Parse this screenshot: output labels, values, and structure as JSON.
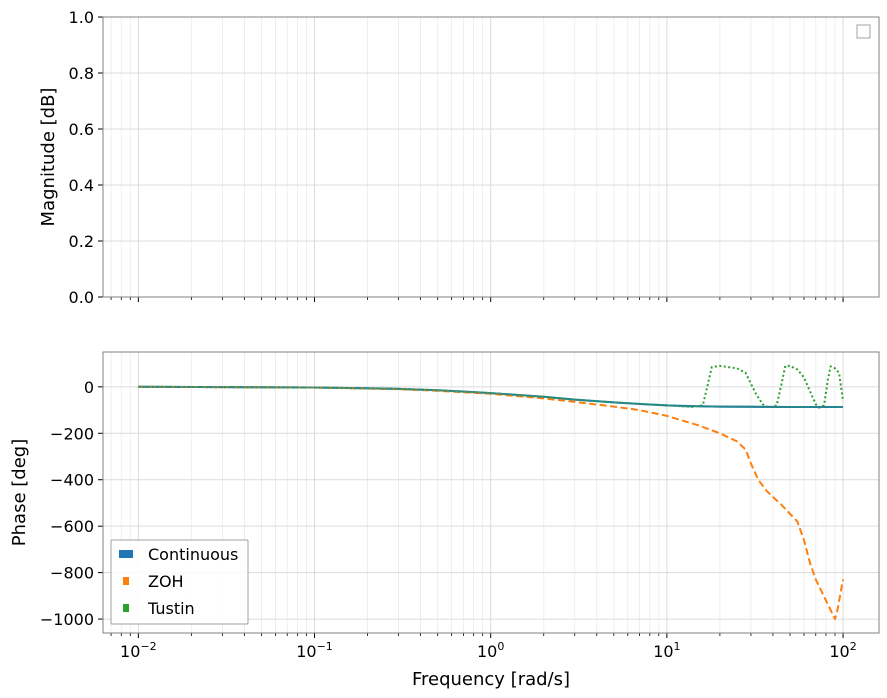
{
  "chart_data": [
    {
      "type": "line",
      "panel": "magnitude",
      "xscale": "log",
      "xlim": [
        0.0063,
        160
      ],
      "ylim": [
        0,
        1.0
      ],
      "ylabel": "Magnitude [dB]",
      "xlabel": "",
      "grid": true,
      "yticks": [
        0.0,
        0.2,
        0.4,
        0.6,
        0.8,
        1.0
      ],
      "ytick_labels": [
        "0.0",
        "0.2",
        "0.4",
        "0.6",
        "0.8",
        "1.0"
      ],
      "legend": {
        "placement": "top-right",
        "entries": []
      },
      "series": []
    },
    {
      "type": "line",
      "panel": "phase",
      "xscale": "log",
      "xlim": [
        0.0063,
        160
      ],
      "ylim": [
        -1060,
        150
      ],
      "xlabel": "Frequency [rad/s]",
      "ylabel": "Phase [deg]",
      "grid": true,
      "xticks": [
        0.01,
        0.1,
        1,
        10,
        100
      ],
      "xtick_labels": [
        {
          "base": "10",
          "exp": "−2"
        },
        {
          "base": "10",
          "exp": "−1"
        },
        {
          "base": "10",
          "exp": "0"
        },
        {
          "base": "10",
          "exp": "1"
        },
        {
          "base": "10",
          "exp": "2"
        }
      ],
      "yticks": [
        0,
        -200,
        -400,
        -600,
        -800,
        -1000
      ],
      "ytick_labels": [
        "0",
        "−200",
        "−400",
        "−600",
        "−800",
        "−1000"
      ],
      "legend": {
        "placement": "lower-left"
      },
      "series": [
        {
          "name": "Continuous",
          "color": "#1f77b4",
          "style": "solid",
          "points": [
            [
              0.01,
              0
            ],
            [
              0.03,
              -1
            ],
            [
              0.1,
              -3
            ],
            [
              0.2,
              -6
            ],
            [
              0.3,
              -9
            ],
            [
              0.5,
              -15
            ],
            [
              0.7,
              -20
            ],
            [
              1,
              -27
            ],
            [
              1.5,
              -36
            ],
            [
              2,
              -43
            ],
            [
              3,
              -55
            ],
            [
              5,
              -67
            ],
            [
              7,
              -74
            ],
            [
              10,
              -80
            ],
            [
              15,
              -84
            ],
            [
              20,
              -85
            ],
            [
              30,
              -86
            ],
            [
              50,
              -87
            ],
            [
              100,
              -87
            ]
          ]
        },
        {
          "name": "ZOH",
          "color": "#ff7f0e",
          "style": "dashed",
          "points": [
            [
              0.01,
              0
            ],
            [
              0.1,
              -3
            ],
            [
              0.3,
              -10
            ],
            [
              0.5,
              -17
            ],
            [
              1,
              -30
            ],
            [
              2,
              -50
            ],
            [
              3,
              -65
            ],
            [
              5,
              -85
            ],
            [
              7,
              -100
            ],
            [
              10,
              -125
            ],
            [
              15,
              -165
            ],
            [
              20,
              -200
            ],
            [
              25,
              -235
            ],
            [
              28,
              -270
            ],
            [
              30,
              -330
            ],
            [
              33,
              -400
            ],
            [
              37,
              -450
            ],
            [
              45,
              -510
            ],
            [
              55,
              -580
            ],
            [
              60,
              -660
            ],
            [
              65,
              -760
            ],
            [
              70,
              -830
            ],
            [
              80,
              -920
            ],
            [
              90,
              -1000
            ],
            [
              93,
              -960
            ],
            [
              100,
              -830
            ]
          ]
        },
        {
          "name": "Tustin",
          "color": "#2ca02c",
          "style": "dotted",
          "points": [
            [
              0.01,
              0
            ],
            [
              0.1,
              -3
            ],
            [
              0.3,
              -9
            ],
            [
              0.5,
              -15
            ],
            [
              1,
              -27
            ],
            [
              2,
              -43
            ],
            [
              3,
              -55
            ],
            [
              5,
              -67
            ],
            [
              10,
              -80
            ],
            [
              14,
              -86
            ],
            [
              16,
              -80
            ],
            [
              17,
              5
            ],
            [
              18,
              85
            ],
            [
              20,
              90
            ],
            [
              25,
              80
            ],
            [
              28,
              60
            ],
            [
              32,
              -30
            ],
            [
              35,
              -75
            ],
            [
              38,
              -90
            ],
            [
              42,
              -80
            ],
            [
              45,
              20
            ],
            [
              47,
              90
            ],
            [
              50,
              90
            ],
            [
              55,
              75
            ],
            [
              60,
              40
            ],
            [
              65,
              -20
            ],
            [
              70,
              -75
            ],
            [
              73,
              -90
            ],
            [
              78,
              -80
            ],
            [
              82,
              30
            ],
            [
              85,
              88
            ],
            [
              90,
              80
            ],
            [
              95,
              60
            ],
            [
              100,
              -60
            ]
          ]
        }
      ]
    }
  ]
}
